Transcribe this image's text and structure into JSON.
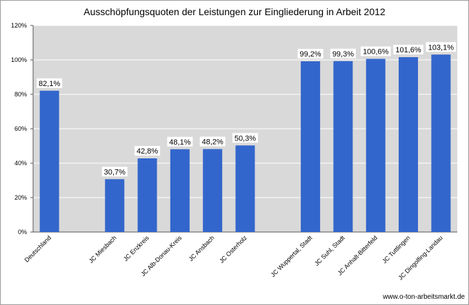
{
  "chart_data": {
    "type": "bar",
    "title": "Ausschöpfungsquoten der Leistungen zur Eingliederung in Arbeit 2012",
    "xlabel": "",
    "ylabel": "",
    "ylim": [
      0,
      120
    ],
    "yticks": [
      "0%",
      "20%",
      "40%",
      "60%",
      "80%",
      "100%",
      "120%"
    ],
    "grid": true,
    "legend": "none",
    "categories": [
      "Deutschland",
      "",
      "JC Miesbach",
      "JC Enzkreis",
      "JC Alb-Donau-Kreis",
      "JC Ansbach",
      "JC Osterholz",
      "",
      "JC Wuppertal, Stadt",
      "JC Suhl, Stadt",
      "JC Anhalt-Bitterfeld",
      "JC Tuttlingen",
      "JC Dingolfing-Landau"
    ],
    "values": [
      82.1,
      null,
      30.7,
      42.8,
      48.1,
      48.2,
      50.3,
      null,
      99.2,
      99.3,
      100.6,
      101.6,
      103.1
    ],
    "data_labels": [
      "82,1%",
      "",
      "30,7%",
      "42,8%",
      "48,1%",
      "48,2%",
      "50,3%",
      "",
      "99,2%",
      "99,3%",
      "100,6%",
      "101,6%",
      "103,1%"
    ],
    "colors": {
      "bar": "#3366cc",
      "plot_background": "#d9d9d9",
      "gridline": "#ffffff"
    }
  },
  "source": "www.o-ton-arbeitsmarkt.de"
}
